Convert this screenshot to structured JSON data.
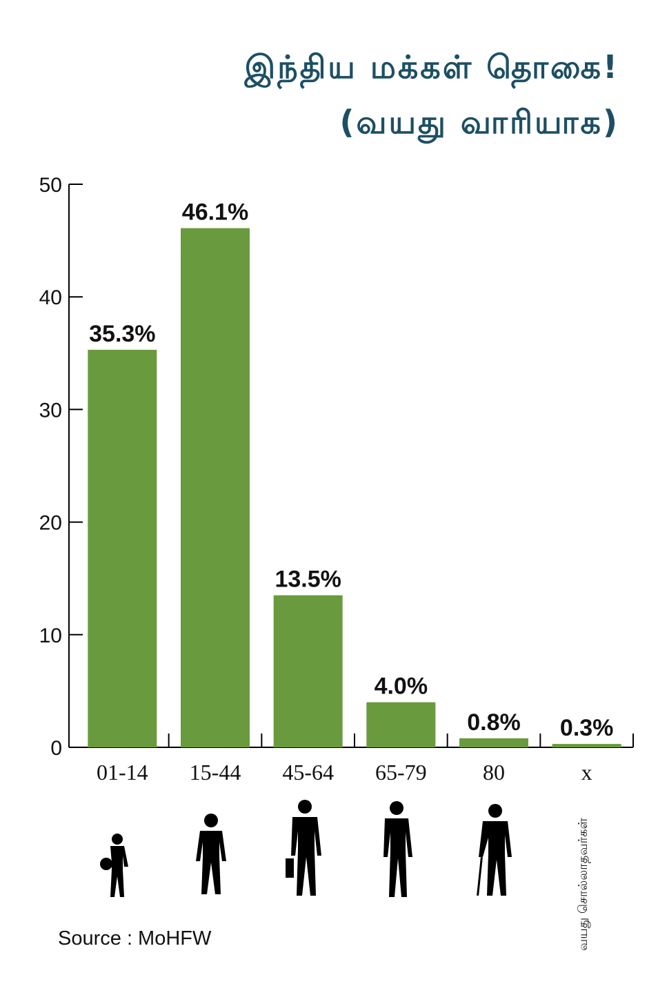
{
  "title": {
    "line1": "இந்திய மக்கள் தொகை!",
    "line2": "(வயது வாரியாக)"
  },
  "chart_data": {
    "type": "bar",
    "categories": [
      "01-14",
      "15-44",
      "45-64",
      "65-79",
      "80",
      "x"
    ],
    "values": [
      35.3,
      46.1,
      13.5,
      4.0,
      0.8,
      0.3
    ],
    "data_labels": [
      "35.3%",
      "46.1%",
      "13.5%",
      "4.0%",
      "0.8%",
      "0.3%"
    ],
    "y_ticks": [
      0,
      10,
      20,
      30,
      40,
      50
    ],
    "ylim": [
      0,
      50
    ],
    "grid": false,
    "bar_color": "#6a9a3e"
  },
  "footnote_x": "வயது சொல்லாதவர்கள்",
  "source": "Source : MoHFW",
  "icons": [
    "child-icon",
    "teen-icon",
    "adult-briefcase-icon",
    "senior-icon",
    "elderly-cane-icon"
  ]
}
